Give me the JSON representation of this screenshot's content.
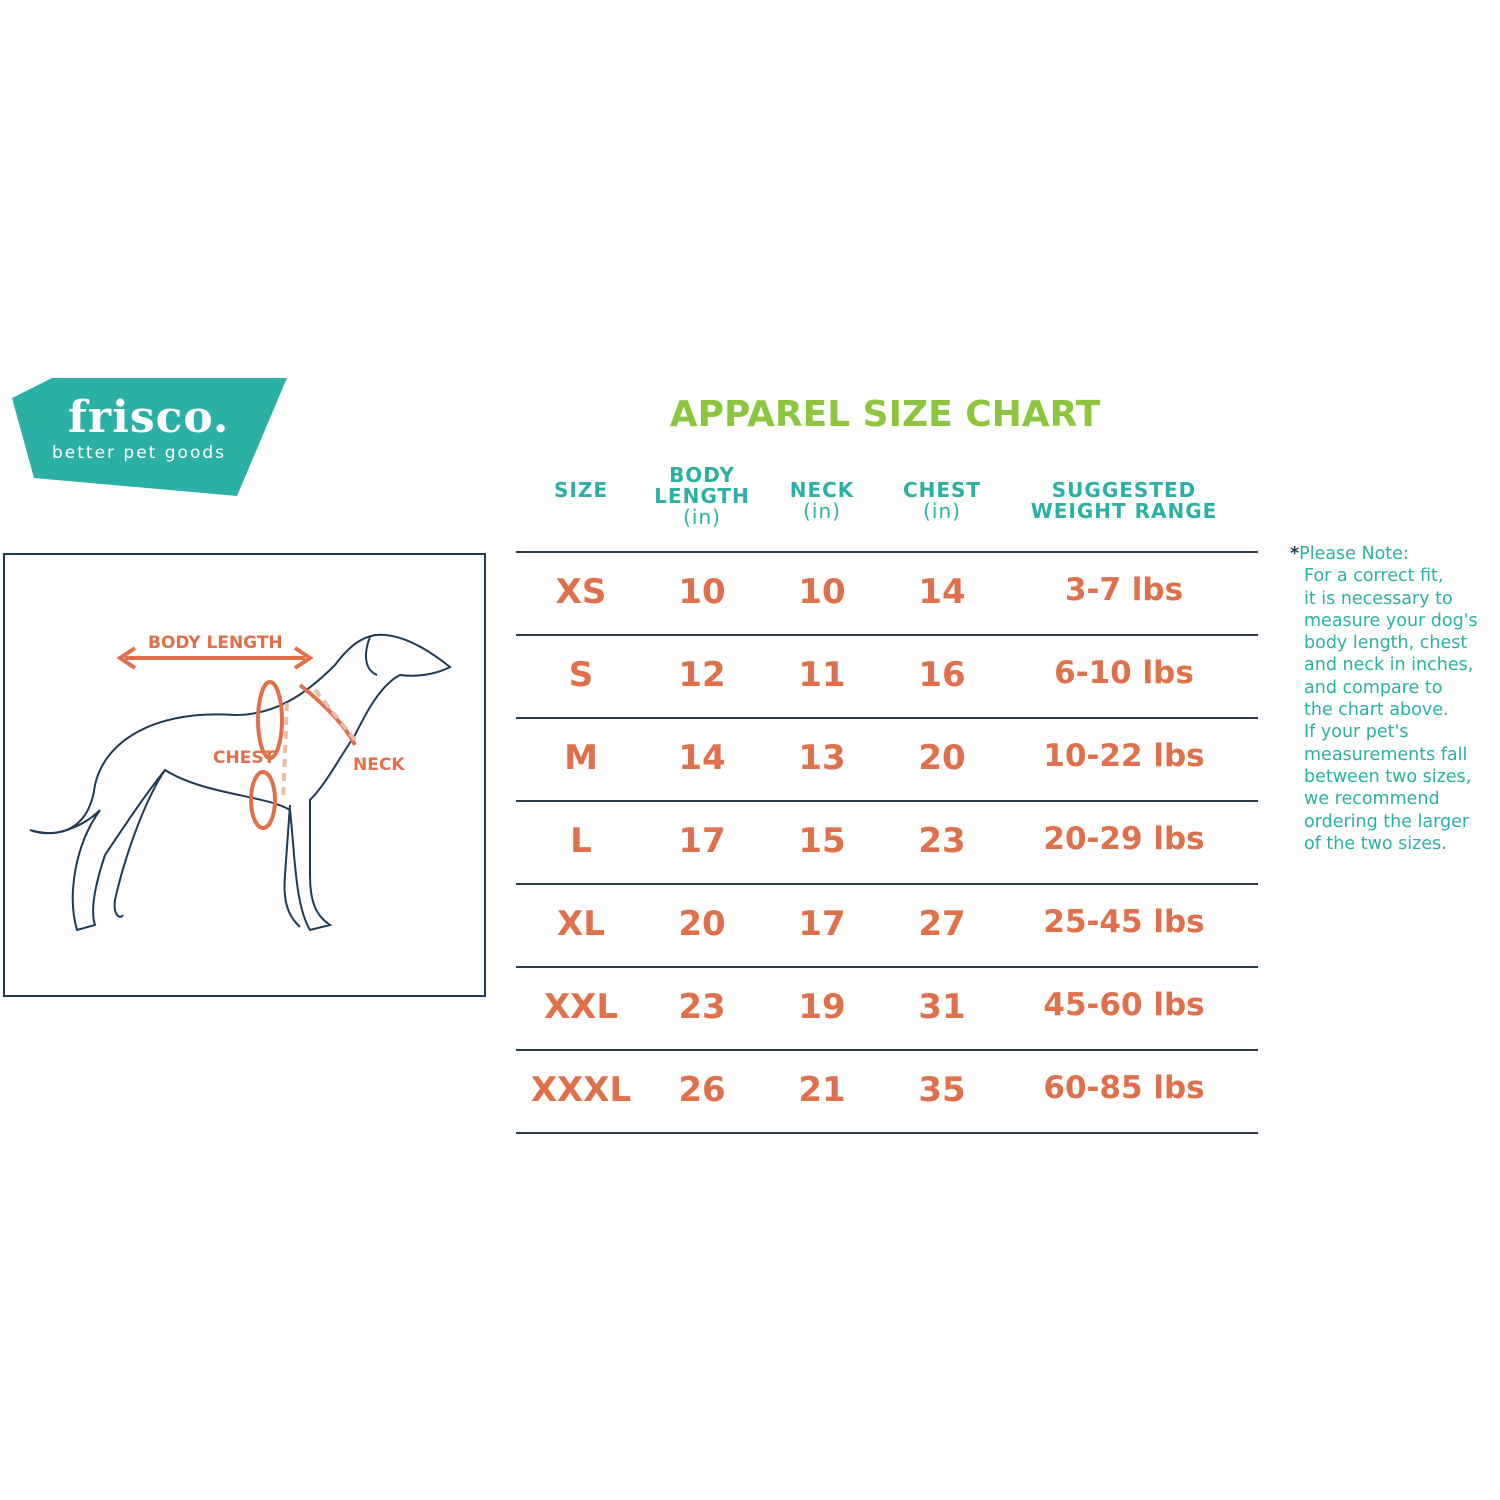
{
  "brand": {
    "name": "frisco.",
    "tagline": "better pet goods",
    "color": "#2ab0a4"
  },
  "title": "APPAREL SIZE CHART",
  "diagram": {
    "labels": {
      "body_length": "BODY LENGTH",
      "chest": "CHEST",
      "neck": "NECK"
    }
  },
  "table": {
    "headers": [
      {
        "label": "SIZE",
        "unit": ""
      },
      {
        "label": "BODY LENGTH",
        "unit": "(in)"
      },
      {
        "label": "NECK",
        "unit": "(in)"
      },
      {
        "label": "CHEST",
        "unit": "(in)"
      },
      {
        "label": "SUGGESTED WEIGHT RANGE",
        "unit": ""
      }
    ],
    "rows": [
      [
        "XS",
        "10",
        "10",
        "14",
        "3-7 lbs"
      ],
      [
        "S",
        "12",
        "11",
        "16",
        "6-10 lbs"
      ],
      [
        "M",
        "14",
        "13",
        "20",
        "10-22 lbs"
      ],
      [
        "L",
        "17",
        "15",
        "23",
        "20-29 lbs"
      ],
      [
        "XL",
        "20",
        "17",
        "27",
        "25-45 lbs"
      ],
      [
        "XXL",
        "23",
        "19",
        "31",
        "45-60 lbs"
      ],
      [
        "XXXL",
        "26",
        "21",
        "35",
        "60-85 lbs"
      ]
    ]
  },
  "note": {
    "star": "*",
    "lines": [
      "Please Note:",
      "For a correct fit,",
      "it is necessary to",
      "measure your dog's",
      "body length, chest",
      "and neck in inches,",
      "and compare to",
      "the chart above.",
      "If your pet's",
      "measurements fall",
      "between two sizes,",
      "we recommend",
      "ordering the larger",
      "of the two sizes."
    ]
  },
  "colors": {
    "title": "#8cc63f",
    "header": "#2ab0a4",
    "values": "#e0704a",
    "outline": "#1f3a55"
  }
}
